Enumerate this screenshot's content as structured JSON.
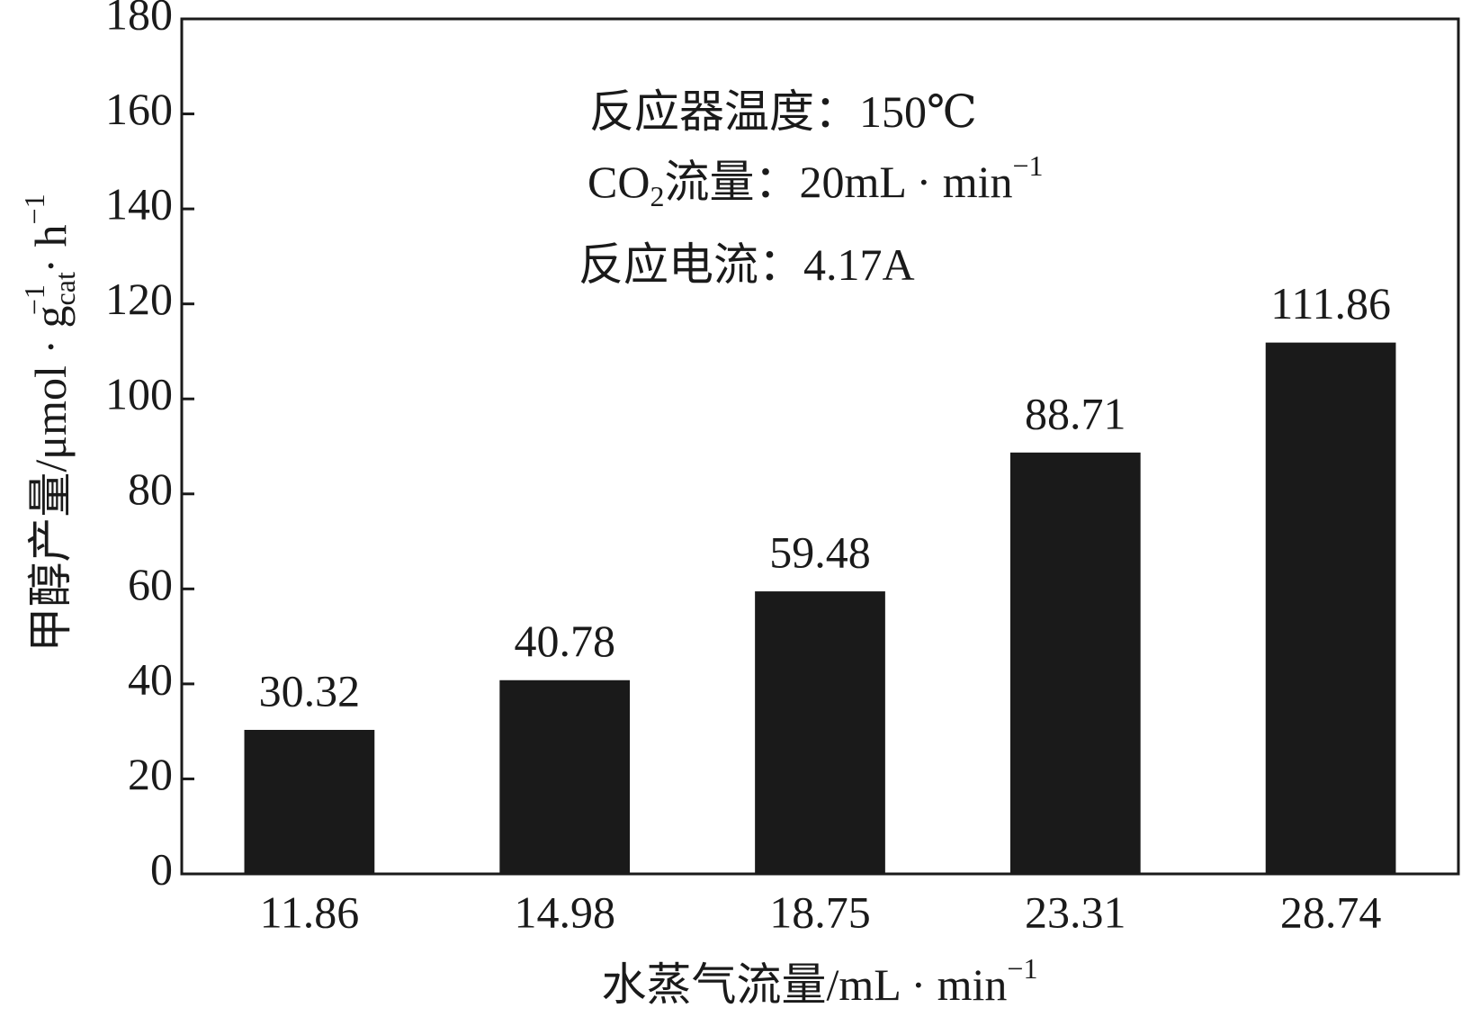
{
  "chart_data": {
    "type": "bar",
    "y_label": [
      "甲醇产量/μmol · g",
      "cat",
      "−1",
      " · h",
      "−1"
    ],
    "x_label": [
      "水蒸气流量/mL · min",
      "−1"
    ],
    "annotations": [
      [
        "反应器温度：150℃"
      ],
      [
        "CO",
        "2",
        "流量：20mL · min",
        "−1"
      ],
      [
        "反应电流：4.17A"
      ]
    ],
    "categories": [
      "11.86",
      "14.98",
      "18.75",
      "23.31",
      "28.74"
    ],
    "values": [
      30.32,
      40.78,
      59.48,
      88.71,
      111.86
    ],
    "color": "#1a1a1a",
    "ylim": [
      0,
      180
    ],
    "yticks": [
      0,
      20,
      40,
      60,
      80,
      100,
      120,
      140,
      160,
      180
    ]
  }
}
